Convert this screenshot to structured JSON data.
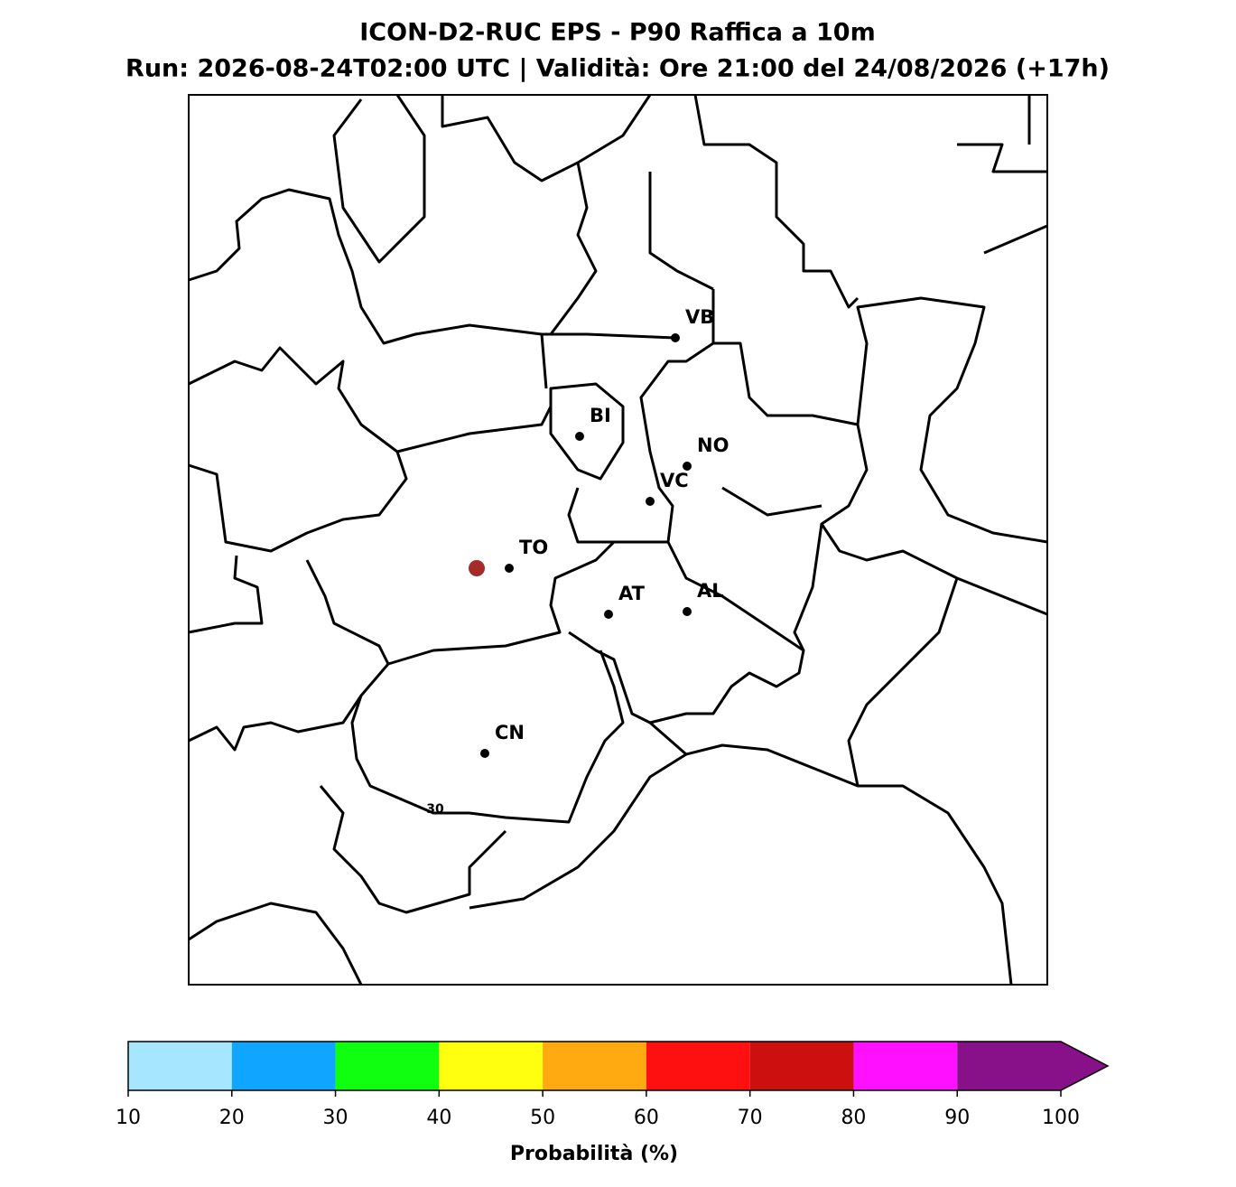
{
  "header": {
    "title": "ICON-D2-RUC EPS - P90 Raffica a 10m",
    "subtitle": "Run: 2026-08-24T02:00 UTC | Validità: Ore 21:00 del 24/08/2026 (+17h)"
  },
  "cities": [
    "VB",
    "BI",
    "NO",
    "VC",
    "TO",
    "AT",
    "AL",
    "CN"
  ],
  "contour_labels": [
    "30"
  ],
  "colorbar": {
    "ticks": [
      10,
      20,
      30,
      40,
      50,
      60,
      70,
      80,
      90,
      100
    ],
    "colors": [
      "#a6e6ff",
      "#10a6ff",
      "#10ff10",
      "#ffff10",
      "#ffaa10",
      "#ff1010",
      "#cc1010",
      "#ff10ff",
      "#881088"
    ],
    "label": "Probabilità (%)"
  }
}
